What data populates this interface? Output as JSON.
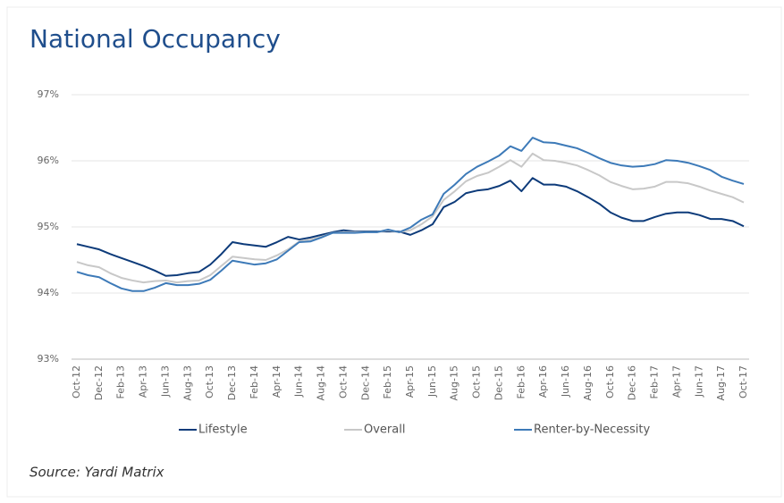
{
  "chart_data": {
    "type": "line",
    "title": "National Occupancy",
    "source": "Source: Yardi Matrix",
    "categories": [
      "Oct-12",
      null,
      "Dec-12",
      null,
      "Feb-13",
      null,
      "Apr-13",
      null,
      "Jun-13",
      null,
      "Aug-13",
      null,
      "Oct-13",
      null,
      "Dec-13",
      null,
      "Feb-14",
      null,
      "Apr-14",
      null,
      "Jun-14",
      null,
      "Aug-14",
      null,
      "Oct-14",
      null,
      "Dec-14",
      null,
      "Feb-15",
      null,
      "Apr-15",
      null,
      "Jun-15",
      null,
      "Aug-15",
      null,
      "Oct-15",
      null,
      "Dec-15",
      null,
      "Feb-16",
      null,
      "Apr-16",
      null,
      "Jun-16",
      null,
      "Aug-16",
      null,
      "Oct-16",
      null,
      "Dec-16",
      null,
      "Feb-17",
      null,
      "Apr-17",
      null,
      "Jun-17",
      null,
      "Aug-17",
      null,
      "Oct-17"
    ],
    "series": [
      {
        "name": "Lifestyle",
        "color": "#0d3b7a",
        "values": [
          94.74,
          94.7,
          94.66,
          94.59,
          94.53,
          94.47,
          94.41,
          94.34,
          94.26,
          94.27,
          94.3,
          94.32,
          94.43,
          94.59,
          94.77,
          94.74,
          94.72,
          94.7,
          94.77,
          94.85,
          94.81,
          94.84,
          94.88,
          94.92,
          94.95,
          94.93,
          94.93,
          94.93,
          94.93,
          94.93,
          94.88,
          94.95,
          95.04,
          95.3,
          95.38,
          95.51,
          95.55,
          95.57,
          95.62,
          95.7,
          95.54,
          95.74,
          95.64,
          95.64,
          95.61,
          95.54,
          95.45,
          95.35,
          95.22,
          95.14,
          95.09,
          95.09,
          95.15,
          95.2,
          95.22,
          95.22,
          95.18,
          95.12,
          95.12,
          95.09,
          95.01
        ]
      },
      {
        "name": "Overall",
        "color": "#c8c8c8",
        "values": [
          94.47,
          94.42,
          94.39,
          94.3,
          94.23,
          94.19,
          94.16,
          94.18,
          94.19,
          94.16,
          94.18,
          94.19,
          94.27,
          94.41,
          94.55,
          94.53,
          94.51,
          94.5,
          94.57,
          94.66,
          94.78,
          94.81,
          94.85,
          94.91,
          94.92,
          94.92,
          94.92,
          94.92,
          94.95,
          94.92,
          94.95,
          95.04,
          95.16,
          95.41,
          95.54,
          95.69,
          95.77,
          95.82,
          95.91,
          96.01,
          95.91,
          96.11,
          96.01,
          96.0,
          95.97,
          95.93,
          95.86,
          95.78,
          95.68,
          95.62,
          95.57,
          95.58,
          95.61,
          95.68,
          95.68,
          95.66,
          95.61,
          95.55,
          95.5,
          95.45,
          95.37
        ]
      },
      {
        "name": "Renter-by-Necessity",
        "color": "#3d7ab8",
        "values": [
          94.32,
          94.27,
          94.24,
          94.15,
          94.07,
          94.03,
          94.03,
          94.08,
          94.15,
          94.12,
          94.12,
          94.14,
          94.2,
          94.34,
          94.49,
          94.46,
          94.43,
          94.45,
          94.51,
          94.64,
          94.77,
          94.78,
          94.84,
          94.91,
          94.91,
          94.91,
          94.92,
          94.92,
          94.96,
          94.92,
          94.99,
          95.11,
          95.19,
          95.5,
          95.64,
          95.8,
          95.91,
          95.99,
          96.08,
          96.22,
          96.15,
          96.35,
          96.28,
          96.27,
          96.23,
          96.19,
          96.12,
          96.04,
          95.97,
          95.93,
          95.91,
          95.92,
          95.95,
          96.01,
          96.0,
          95.97,
          95.92,
          95.86,
          95.76,
          95.7,
          95.65
        ]
      }
    ],
    "ylim": [
      93,
      97
    ],
    "yticks": [
      {
        "value": 93,
        "label": "93%"
      },
      {
        "value": 94,
        "label": "94%"
      },
      {
        "value": 95,
        "label": "95%"
      },
      {
        "value": 96,
        "label": "96%"
      },
      {
        "value": 97,
        "label": "97%"
      }
    ],
    "grid": true,
    "legend": "bottom"
  }
}
